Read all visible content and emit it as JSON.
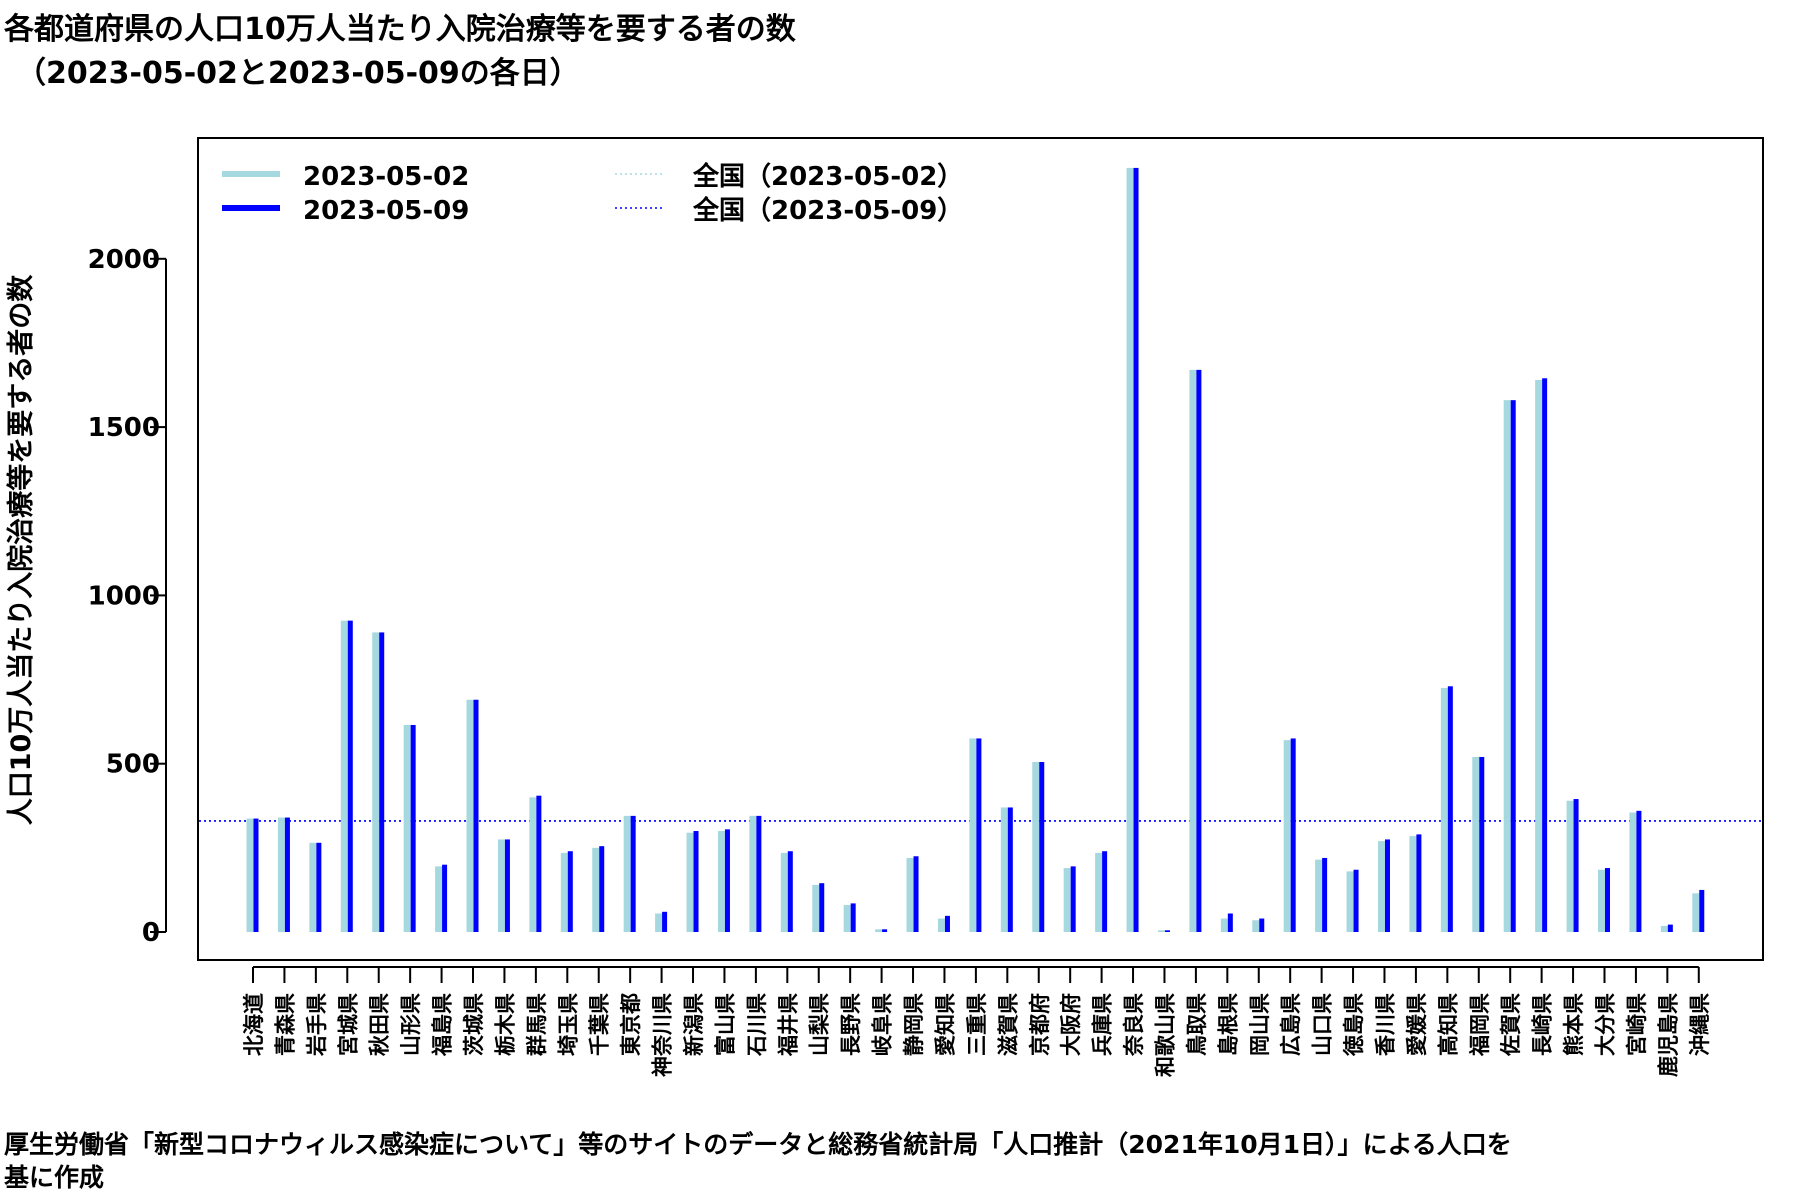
{
  "title_line1": "各都道府県の人口10万人当たり入院治療等を要する者の数",
  "title_line2": "（2023-05-02と2023-05-09の各日）",
  "footer_line1": "厚生労働省「新型コロナウィルス感染症について」等のサイトのデータと総務省統計局「人口推計（2021年10月1日）」による人口を",
  "footer_line2": "基に作成",
  "colors": {
    "series1": "#a6d8df",
    "series2": "#0000ff",
    "axis": "#000000"
  },
  "chart_data": {
    "type": "bar",
    "ylabel": "人口10万人当たり入院治療等を要する者の数",
    "ylim": [
      0,
      2270
    ],
    "yticks": [
      0,
      500,
      1000,
      1500,
      2000
    ],
    "legend_position": "top-left",
    "categories": [
      "北海道",
      "青森県",
      "岩手県",
      "宮城県",
      "秋田県",
      "山形県",
      "福島県",
      "茨城県",
      "栃木県",
      "群馬県",
      "埼玉県",
      "千葉県",
      "東京都",
      "神奈川県",
      "新潟県",
      "富山県",
      "石川県",
      "福井県",
      "山梨県",
      "長野県",
      "岐阜県",
      "静岡県",
      "愛知県",
      "三重県",
      "滋賀県",
      "京都府",
      "大阪府",
      "兵庫県",
      "奈良県",
      "和歌山県",
      "鳥取県",
      "島根県",
      "岡山県",
      "広島県",
      "山口県",
      "徳島県",
      "香川県",
      "愛媛県",
      "高知県",
      "福岡県",
      "佐賀県",
      "長崎県",
      "熊本県",
      "大分県",
      "宮崎県",
      "鹿児島県",
      "沖縄県"
    ],
    "series": [
      {
        "name": "2023-05-02",
        "color": "#a6d8df",
        "values": [
          337,
          340,
          265,
          925,
          890,
          615,
          195,
          690,
          275,
          400,
          235,
          250,
          345,
          55,
          295,
          300,
          345,
          235,
          140,
          80,
          8,
          220,
          40,
          575,
          370,
          505,
          190,
          235,
          2270,
          5,
          1670,
          40,
          35,
          570,
          215,
          180,
          270,
          285,
          725,
          520,
          1580,
          1640,
          390,
          185,
          355,
          18,
          115
        ]
      },
      {
        "name": "2023-05-09",
        "color": "#0000ff",
        "values": [
          337,
          340,
          265,
          925,
          890,
          615,
          200,
          690,
          275,
          405,
          240,
          255,
          345,
          60,
          300,
          305,
          345,
          240,
          145,
          85,
          8,
          225,
          48,
          575,
          370,
          505,
          195,
          240,
          2270,
          5,
          1670,
          55,
          40,
          575,
          220,
          185,
          275,
          290,
          730,
          520,
          1580,
          1645,
          395,
          190,
          360,
          22,
          125
        ]
      }
    ],
    "reference_lines": [
      {
        "name": "全国（2023-05-02）",
        "value": 330,
        "color": "#a6d8df"
      },
      {
        "name": "全国（2023-05-09）",
        "value": 330,
        "color": "#0000ff"
      }
    ]
  }
}
